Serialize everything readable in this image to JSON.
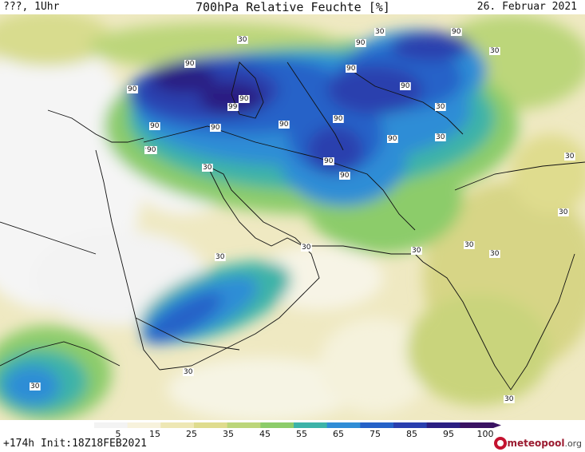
{
  "header": {
    "left_label": "???, 1Uhr",
    "title": "700hPa Relative Feuchte [%]",
    "date": "26. Februar 2021"
  },
  "map": {
    "contour_labels": [
      "90",
      "90",
      "90",
      "90",
      "90",
      "90",
      "90",
      "90",
      "90",
      "90",
      "90",
      "90",
      "90",
      "90",
      "90",
      "90",
      "90",
      "99",
      "90",
      "30",
      "30",
      "30",
      "30",
      "30",
      "30",
      "30",
      "30",
      "30",
      "30",
      "30",
      "30",
      "30",
      "30",
      "30",
      "30"
    ]
  },
  "legend": {
    "ticks": [
      "5",
      "15",
      "25",
      "35",
      "45",
      "55",
      "65",
      "75",
      "85",
      "95",
      "100"
    ],
    "colors": [
      "#f3f3f3",
      "#f7f2dc",
      "#eee7b4",
      "#dfdc8e",
      "#bcd67a",
      "#8ccc6a",
      "#3cb3a8",
      "#2f8dd6",
      "#2562c8",
      "#2a3fae",
      "#2b1f82",
      "#3a1363"
    ]
  },
  "footer": {
    "run_info": "+174h Init:18Z18FEB2021",
    "brand": "meteopool",
    "brand_tld": ".org"
  }
}
